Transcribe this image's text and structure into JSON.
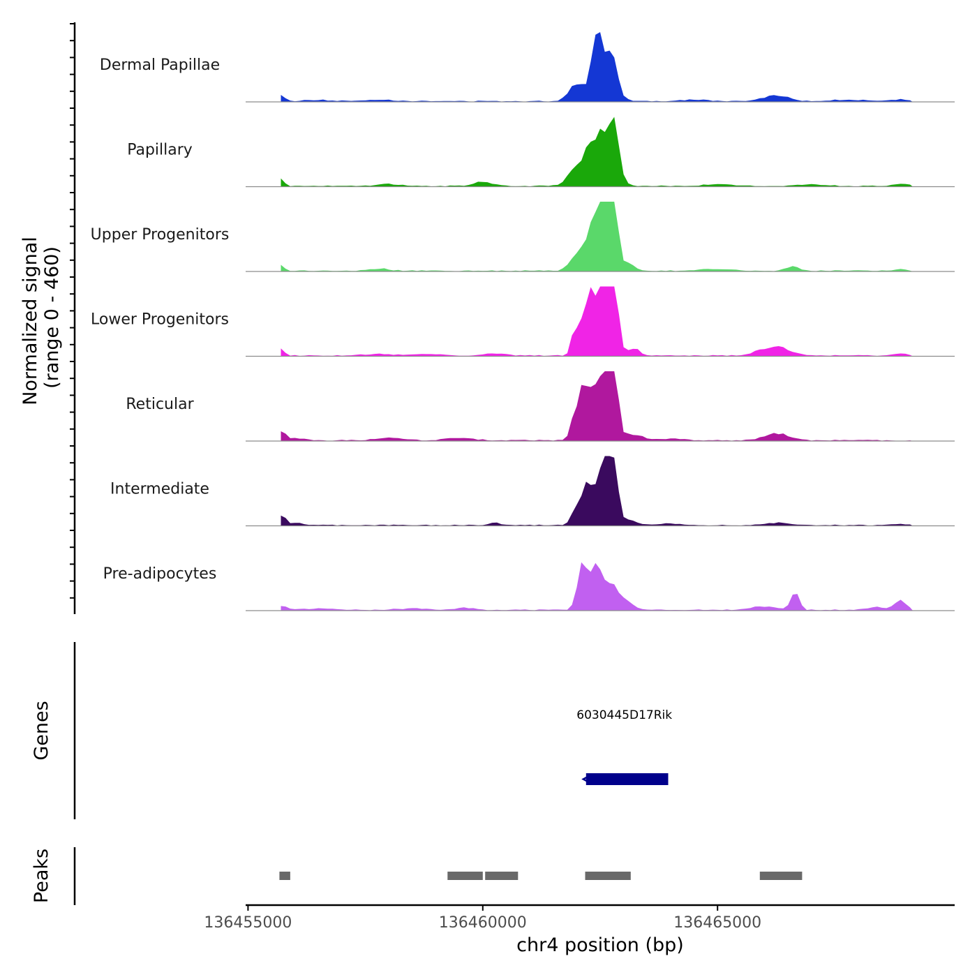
{
  "chart_data": {
    "type": "area",
    "chromosome": "chr4",
    "xlabel": "chr4 position (bp)",
    "xlim": [
      136454950,
      136470050
    ],
    "x_ticks": [
      136455000,
      136460000,
      136465000
    ],
    "x_tick_labels": [
      "136455000",
      "136460000",
      "136465000"
    ],
    "signal_panel": {
      "ylabel_line1": "Normalized signal",
      "ylabel_line2": "(range 0 - 460)",
      "y_range": [
        0,
        460
      ],
      "data_start": 136455700,
      "data_end": 136469160,
      "profile_bin_bp": 100,
      "tracks": [
        {
          "name": "Dermal Papillae",
          "color": "#1437d4",
          "peaks": [
            [
              136455720,
              40,
              60
            ],
            [
              136462000,
              120,
              160
            ],
            [
              136462450,
              420,
              120
            ],
            [
              136462780,
              200,
              90
            ],
            [
              136462620,
              150,
              220
            ],
            [
              136466250,
              40,
              250
            ],
            [
              136457800,
              10,
              300
            ],
            [
              136456500,
              8,
              300
            ],
            [
              136464500,
              10,
              300
            ],
            [
              136467800,
              10,
              350
            ],
            [
              136468900,
              12,
              150
            ]
          ]
        },
        {
          "name": "Papillary",
          "color": "#1aa80a",
          "peaks": [
            [
              136455720,
              50,
              60
            ],
            [
              136462000,
              100,
              180
            ],
            [
              136462450,
              260,
              250
            ],
            [
              136462800,
              300,
              90
            ],
            [
              136462620,
              140,
              200
            ],
            [
              136460000,
              30,
              180
            ],
            [
              136458000,
              15,
              200
            ],
            [
              136465000,
              10,
              300
            ],
            [
              136467000,
              10,
              300
            ],
            [
              136468900,
              15,
              150
            ]
          ]
        },
        {
          "name": "Upper Progenitors",
          "color": "#5ad86a",
          "peaks": [
            [
              136455720,
              40,
              60
            ],
            [
              136462000,
              110,
              150
            ],
            [
              136462350,
              250,
              150
            ],
            [
              136462550,
              430,
              120
            ],
            [
              136462800,
              460,
              80
            ],
            [
              136463050,
              60,
              150
            ],
            [
              136465000,
              12,
              300
            ],
            [
              136466600,
              35,
              120
            ],
            [
              136457800,
              15,
              200
            ],
            [
              136468900,
              10,
              150
            ]
          ]
        },
        {
          "name": "Lower Progenitors",
          "color": "#f024e6",
          "peaks": [
            [
              136455720,
              50,
              60
            ],
            [
              136461950,
              100,
              70
            ],
            [
              136462150,
              170,
              130
            ],
            [
              136462400,
              350,
              190
            ],
            [
              136462620,
              390,
              120
            ],
            [
              136462800,
              420,
              90
            ],
            [
              136463200,
              50,
              130
            ],
            [
              136466200,
              60,
              300
            ],
            [
              136460250,
              15,
              200
            ],
            [
              136457800,
              10,
              300
            ],
            [
              136458800,
              10,
              300
            ],
            [
              136468900,
              12,
              150
            ]
          ]
        },
        {
          "name": "Reticular",
          "color": "#b0189e",
          "peaks": [
            [
              136455720,
              60,
              70
            ],
            [
              136456000,
              15,
              200
            ],
            [
              136461950,
              120,
              80
            ],
            [
              136462150,
              300,
              120
            ],
            [
              136462400,
              330,
              150
            ],
            [
              136462620,
              340,
              120
            ],
            [
              136462800,
              410,
              90
            ],
            [
              136463200,
              40,
              200
            ],
            [
              136466250,
              45,
              250
            ],
            [
              136458000,
              15,
              300
            ],
            [
              136459500,
              15,
              300
            ],
            [
              136464000,
              10,
              300
            ]
          ]
        },
        {
          "name": "Intermediate",
          "color": "#3a0a5e",
          "peaks": [
            [
              136455720,
              70,
              70
            ],
            [
              136456000,
              15,
              150
            ],
            [
              136461950,
              60,
              90
            ],
            [
              136462150,
              150,
              130
            ],
            [
              136462400,
              250,
              170
            ],
            [
              136462620,
              320,
              110
            ],
            [
              136462800,
              330,
              90
            ],
            [
              136463100,
              30,
              150
            ],
            [
              136460250,
              18,
              100
            ],
            [
              136466300,
              15,
              300
            ],
            [
              136464000,
              10,
              300
            ],
            [
              136468900,
              8,
              150
            ]
          ]
        },
        {
          "name": "Pre-adipocytes",
          "color": "#c160f0",
          "peaks": [
            [
              136455720,
              25,
              100
            ],
            [
              136462100,
              240,
              100
            ],
            [
              136462300,
              110,
              120
            ],
            [
              136462500,
              220,
              180
            ],
            [
              136462800,
              90,
              150
            ],
            [
              136463100,
              40,
              150
            ],
            [
              136466650,
              120,
              90
            ],
            [
              136466000,
              25,
              250
            ],
            [
              136468900,
              60,
              120
            ],
            [
              136468400,
              20,
              200
            ],
            [
              136459600,
              15,
              200
            ],
            [
              136456500,
              10,
              300
            ],
            [
              136458500,
              10,
              300
            ]
          ]
        }
      ]
    },
    "genes_panel": {
      "ylabel": "Genes",
      "genes": [
        {
          "name": "6030445D17Rik",
          "start": 136462200,
          "end": 136463950,
          "strand": "-",
          "color": "#00008b"
        }
      ]
    },
    "peaks_panel": {
      "ylabel": "Peaks",
      "color": "#696969",
      "regions": [
        [
          136455670,
          136455900
        ],
        [
          136459250,
          136460000
        ],
        [
          136460050,
          136460750
        ],
        [
          136462180,
          136463150
        ],
        [
          136465900,
          136466800
        ]
      ]
    }
  }
}
